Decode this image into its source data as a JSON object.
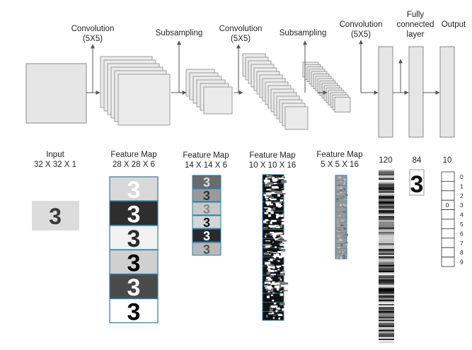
{
  "top_labels": {
    "conv1": [
      "Convolution",
      "(5X5)"
    ],
    "sub1": "Subsampling",
    "conv2": [
      "Convolution",
      "(5X5)"
    ],
    "sub2": "Subsampling",
    "conv3": [
      "Convolution",
      "(5X5)"
    ],
    "fc": [
      "Fully",
      "connected",
      "layer"
    ],
    "output": "Output"
  },
  "bottom_labels": {
    "input": [
      "Input",
      "32 X 32 X 1"
    ],
    "fm1": [
      "Feature Map",
      "28 X 28 X 6"
    ],
    "fm2": [
      "Feature Map",
      "14 X 14 X 6"
    ],
    "fm3": [
      "Feature Map",
      "10 X 10 X 16"
    ],
    "fm4": [
      "Feature Map",
      "5 X 5 X 16"
    ],
    "n120": "120",
    "n84": "84",
    "n10": "10"
  },
  "digit": "3",
  "output_classes": [
    "0",
    "1",
    "2",
    "3",
    "4",
    "5",
    "6",
    "7",
    "8",
    "9"
  ],
  "output_cell_value": "0",
  "colors": {
    "layer_fill": "#e6e6e6",
    "layer_stroke": "#777777",
    "arrow": "#555555",
    "map_blue": "#2a7fa8"
  }
}
